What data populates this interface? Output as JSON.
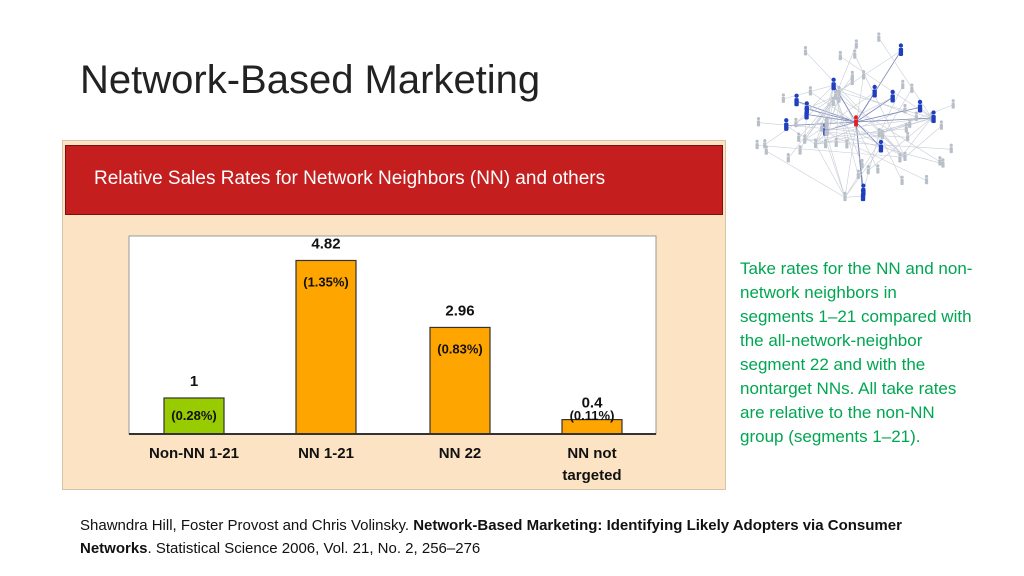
{
  "slide": {
    "title": "Network-Based Marketing"
  },
  "side_note": "Take rates for the NN and non-network neighbors in segments 1–21 compared with the all-network-neighbor segment 22 and with the nontarget NNs. All take rates are relative to the non-NN group (segments 1–21).",
  "citation": {
    "authors": "Shawndra Hill, Foster Provost and Chris Volinsky.",
    "title": "Network-Based Marketing: Identifying Likely Adopters via Consumer Networks",
    "source": ". Statistical Science 2006, Vol. 21, No. 2, 256–276"
  },
  "colors": {
    "header_red": "#c41e1e",
    "panel_bg": "#fbe3c4",
    "bar_green": "#99cc00",
    "bar_orange": "#ffa500",
    "note_green": "#00a651"
  },
  "icons": {
    "network_graphic": "people-network-graph"
  },
  "chart_data": {
    "type": "bar",
    "title": "Relative Sales Rates for Network Neighbors (NN) and others",
    "categories": [
      "Non-NN 1-21",
      "NN 1-21",
      "NN 22",
      "NN not targeted"
    ],
    "values": [
      1,
      4.82,
      2.96,
      0.4
    ],
    "value_labels": [
      "1",
      "4.82",
      "2.96",
      "0.4"
    ],
    "rate_labels": [
      "(0.28%)",
      "(1.35%)",
      "(0.83%)",
      "(0.11%)"
    ],
    "bar_colors": [
      "#99cc00",
      "#ffa500",
      "#ffa500",
      "#ffa500"
    ],
    "ylim": [
      0,
      5.5
    ],
    "grid": false,
    "xlabel": "",
    "ylabel": ""
  }
}
